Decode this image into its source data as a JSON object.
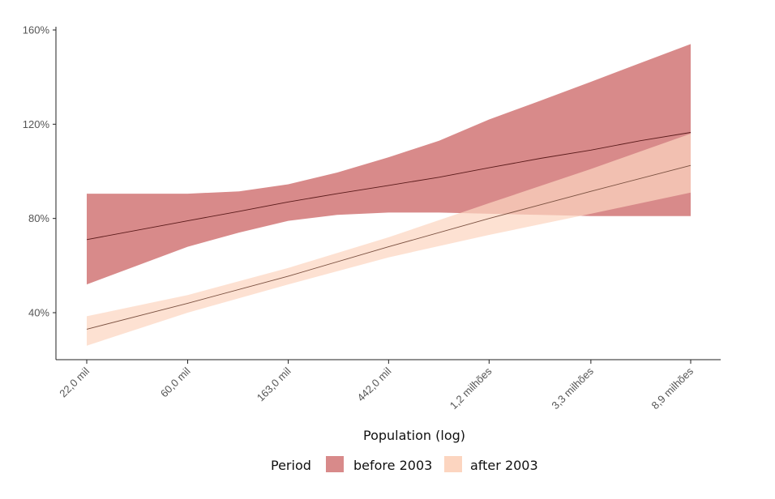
{
  "chart_data": {
    "type": "line",
    "xlabel": "Population (log)",
    "x_scale": "log",
    "x_ticks": [
      {
        "value": 22000,
        "label": "22,0 mil"
      },
      {
        "value": 60000,
        "label": "60,0 mil"
      },
      {
        "value": 163000,
        "label": "163,0 mil"
      },
      {
        "value": 442000,
        "label": "442,0 mil"
      },
      {
        "value": 1200000,
        "label": "1,2 milhões"
      },
      {
        "value": 3300000,
        "label": "3,3 milhões"
      },
      {
        "value": 8900000,
        "label": "8,9 milhões"
      }
    ],
    "y_ticks": [
      {
        "value": 40,
        "label": "40%"
      },
      {
        "value": 80,
        "label": "80%"
      },
      {
        "value": 120,
        "label": "120%"
      },
      {
        "value": 160,
        "label": "160%"
      }
    ],
    "ylim": [
      20,
      162
    ],
    "grid": false,
    "legend": {
      "title": "Period",
      "position": "bottom",
      "entries": [
        "before 2003",
        "after 2003"
      ]
    },
    "series": [
      {
        "name": "before 2003",
        "fill_color": "#d88a8a",
        "line_color": "#5a1a1a",
        "x": [
          22000,
          60000,
          100000,
          163000,
          265000,
          442000,
          730000,
          1200000,
          2000000,
          3300000,
          5400000,
          8900000
        ],
        "y": [
          71,
          79,
          83,
          87,
          90.5,
          94,
          97.5,
          101.5,
          105.5,
          109,
          113,
          116.5
        ],
        "lower": [
          52,
          68,
          74,
          79,
          81.5,
          82.5,
          82.5,
          82,
          81.5,
          81,
          81,
          81
        ],
        "upper": [
          90.5,
          90.5,
          91.5,
          94.5,
          99.5,
          106,
          113,
          122,
          130,
          138,
          146,
          154
        ]
      },
      {
        "name": "after 2003",
        "fill_color": "#fcd5c0",
        "line_color": "#7a5040",
        "x": [
          22000,
          60000,
          163000,
          442000,
          1200000,
          3300000,
          8900000
        ],
        "y": [
          33,
          44,
          55.5,
          68,
          80,
          91.5,
          102.5
        ],
        "lower": [
          26,
          40,
          52,
          63.5,
          73,
          82,
          91
        ],
        "upper": [
          38.5,
          47.5,
          59,
          72,
          86.5,
          101,
          116
        ]
      }
    ]
  }
}
